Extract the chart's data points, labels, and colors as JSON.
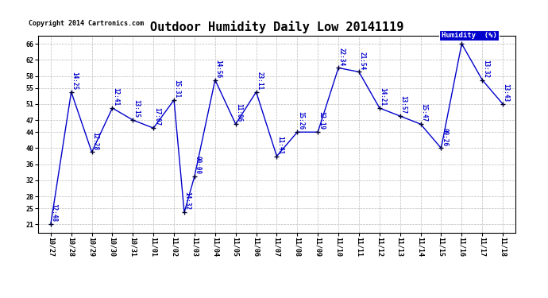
{
  "title": "Outdoor Humidity Daily Low 20141119",
  "copyright": "Copyright 2014 Cartronics.com",
  "legend_label": "Humidity  (%)",
  "x_date_labels": [
    "10/27",
    "10/28",
    "10/29",
    "10/30",
    "10/31",
    "11/01",
    "11/02",
    "11/03",
    "11/04",
    "11/05",
    "11/06",
    "11/07",
    "11/08",
    "11/09",
    "11/10",
    "11/11",
    "11/12",
    "11/13",
    "11/14",
    "11/15",
    "11/16",
    "11/17",
    "11/18"
  ],
  "y_values": [
    21,
    54,
    39,
    50,
    47,
    45,
    52,
    24,
    33,
    57,
    46,
    54,
    38,
    44,
    44,
    60,
    59,
    50,
    48,
    46,
    40,
    66,
    57,
    51
  ],
  "x_positions": [
    0,
    1,
    2,
    3,
    4,
    5,
    6,
    6.5,
    7,
    8,
    9,
    10,
    11,
    12,
    13,
    14,
    15,
    16,
    17,
    18,
    19,
    20,
    21,
    22
  ],
  "tick_positions": [
    0,
    1,
    2,
    3,
    4,
    5,
    6,
    7,
    8,
    9,
    10,
    11,
    12,
    13,
    14,
    15,
    16,
    17,
    18,
    19,
    20,
    21,
    22
  ],
  "point_labels": [
    "12:48",
    "14:25",
    "12:28",
    "12:41",
    "13:15",
    "17:07",
    "15:31",
    "14:32",
    "00:00",
    "14:56",
    "11:06",
    "23:11",
    "11:41",
    "15:26",
    "12:19",
    "22:34",
    "21:54",
    "14:21",
    "13:57",
    "15:47",
    "09:26",
    "",
    "13:32",
    "13:43"
  ],
  "ylim": [
    19,
    68
  ],
  "yticks": [
    21,
    25,
    28,
    32,
    36,
    40,
    44,
    47,
    51,
    55,
    58,
    62,
    66
  ],
  "line_color": "#0000CC",
  "marker_color": "#000033",
  "bg_color": "#ffffff",
  "grid_color": "#bbbbbb",
  "title_fontsize": 11,
  "tick_fontsize": 6,
  "point_label_fontsize": 5.5,
  "copyright_fontsize": 6,
  "legend_bg": "#0000CC",
  "legend_text_color": "#ffffff",
  "legend_fontsize": 6.5
}
